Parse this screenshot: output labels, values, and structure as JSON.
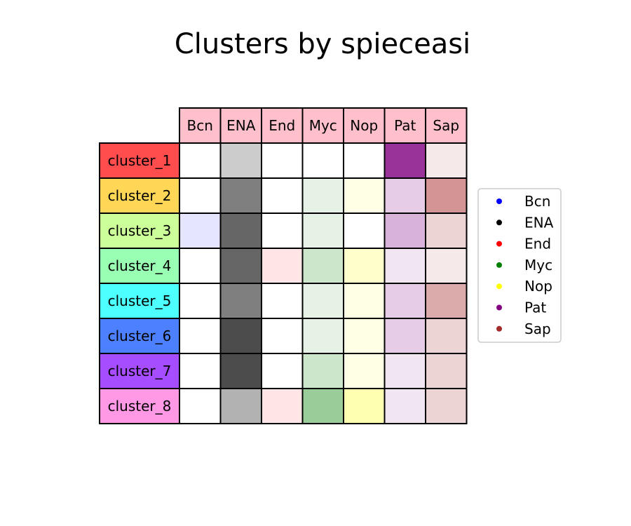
{
  "chart_data": {
    "type": "heatmap",
    "title": "Clusters by spieceasi",
    "columns": [
      "Bcn",
      "ENA",
      "End",
      "Myc",
      "Nop",
      "Pat",
      "Sap"
    ],
    "rows": [
      "cluster_1",
      "cluster_2",
      "cluster_3",
      "cluster_4",
      "cluster_5",
      "cluster_6",
      "cluster_7",
      "cluster_8"
    ],
    "values": [
      [
        0.0,
        0.2,
        0.0,
        0.0,
        0.0,
        0.8,
        0.1
      ],
      [
        0.0,
        0.5,
        0.0,
        0.1,
        0.1,
        0.2,
        0.5
      ],
      [
        0.1,
        0.6,
        0.0,
        0.1,
        0.0,
        0.3,
        0.2
      ],
      [
        0.0,
        0.6,
        0.1,
        0.2,
        0.2,
        0.1,
        0.1
      ],
      [
        0.0,
        0.5,
        0.0,
        0.1,
        0.1,
        0.2,
        0.4
      ],
      [
        0.0,
        0.7,
        0.0,
        0.1,
        0.1,
        0.2,
        0.2
      ],
      [
        0.0,
        0.7,
        0.0,
        0.2,
        0.1,
        0.1,
        0.2
      ],
      [
        0.0,
        0.3,
        0.1,
        0.4,
        0.3,
        0.1,
        0.2
      ]
    ],
    "column_header_color": "#ffc0cb",
    "row_colors": [
      "#ff4d4d",
      "#ffd655",
      "#ccff99",
      "#99ffb3",
      "#4dffff",
      "#4d80ff",
      "#a64dff",
      "#ff99e6"
    ],
    "column_colors": [
      "#0000ff",
      "#000000",
      "#ff0000",
      "#008000",
      "#ffff00",
      "#800080",
      "#a52a2a"
    ],
    "legend": {
      "placement": "right",
      "entries": [
        "Bcn",
        "ENA",
        "End",
        "Myc",
        "Nop",
        "Pat",
        "Sap"
      ]
    }
  }
}
